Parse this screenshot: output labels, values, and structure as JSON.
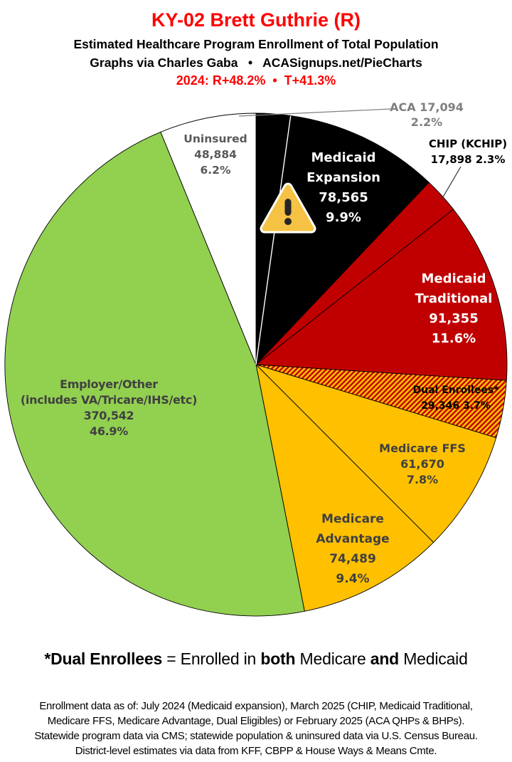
{
  "header": {
    "title": "KY-02 Brett Guthrie (R)",
    "subtitle1": "Estimated Healthcare Program Enrollment of Total Population",
    "subtitle2": "Graphs via Charles Gaba   •   ACASignups.net/PieCharts",
    "partisan_line": "2024: R+48.2%  •  T+41.3%"
  },
  "chart_data": {
    "type": "pie",
    "title": "Estimated Healthcare Program Enrollment of Total Population",
    "legend_position": "labels-on-and-around-slices",
    "start_angle_deg": 0,
    "direction": "clockwise",
    "slices": [
      {
        "label": "ACA",
        "value": 17094,
        "pct": 2.2,
        "color": "#000000"
      },
      {
        "label": "Medicaid Expansion",
        "value": 78565,
        "pct": 9.9,
        "color": "#000000"
      },
      {
        "label": "CHIP (KCHIP)",
        "value": 17898,
        "pct": 2.3,
        "color": "#C00000"
      },
      {
        "label": "Medicaid Traditional",
        "value": 91355,
        "pct": 11.6,
        "color": "#C00000"
      },
      {
        "label": "Dual Enrollees*",
        "value": 29346,
        "pct": 3.7,
        "color": "hatch",
        "pattern": "red-gold-diagonal-stripes"
      },
      {
        "label": "Medicare FFS",
        "value": 61670,
        "pct": 7.8,
        "color": "#FFC000"
      },
      {
        "label": "Medicare Advantage",
        "value": 74489,
        "pct": 9.4,
        "color": "#FFC000"
      },
      {
        "label": "Employer/Other (includes VA/Tricare/IHS/etc)",
        "value": 370542,
        "pct": 46.9,
        "color": "#92D050"
      },
      {
        "label": "Uninsured",
        "value": 48884,
        "pct": 6.2,
        "color": "#FFFFFF"
      }
    ]
  },
  "labels": {
    "aca": {
      "lines": [
        "ACA 17,094",
        "2.2%"
      ]
    },
    "chip": {
      "lines": [
        "CHIP (KCHIP)",
        "17,898 2.3%"
      ]
    },
    "uninsured": {
      "lines": [
        "Uninsured",
        "48,884",
        "6.2%"
      ]
    },
    "medicaid_expansion": {
      "lines": [
        "Medicaid",
        "Expansion",
        "78,565",
        "9.9%"
      ]
    },
    "medicaid_traditional": {
      "lines": [
        "Medicaid",
        "Traditional",
        "91,355",
        "11.6%"
      ]
    },
    "dual_enrollees": {
      "lines": [
        "Dual Enrollees*",
        "29,346 3.7%"
      ]
    },
    "medicare_ffs": {
      "lines": [
        "Medicare FFS",
        "61,670",
        "7.8%"
      ]
    },
    "medicare_advantage": {
      "lines": [
        "Medicare",
        "Advantage",
        "74,489",
        "9.4%"
      ]
    },
    "employer": {
      "lines": [
        "Employer/Other",
        "(includes VA/Tricare/IHS/etc)",
        "370,542",
        "46.9%"
      ]
    }
  },
  "note": {
    "segments": [
      {
        "text": "*Dual Enrollees",
        "bold": true
      },
      {
        "text": " = Enrolled in ",
        "bold": false
      },
      {
        "text": "both",
        "bold": true
      },
      {
        "text": " Medicare ",
        "bold": false
      },
      {
        "text": "and",
        "bold": true
      },
      {
        "text": " Medicaid",
        "bold": false
      }
    ]
  },
  "footer": {
    "lines": [
      "Enrollment data as of: July 2024 (Medicaid expansion), March 2025 (CHIP, Medicaid Traditional,",
      "Medicare FFS, Medicare Advantage, Dual Eligibles) or February 2025 (ACA QHPs & BHPs).",
      "Statewide program data via CMS; statewide population & uninsured data via U.S. Census Bureau.",
      "District-level estimates via data from KFF, CBPP & House Ways & Means Cmte."
    ]
  },
  "icons": {
    "warning": "warning-triangle-icon"
  },
  "colors": {
    "title_red": "#FF0000",
    "slice_black": "#000000",
    "slice_dark_red": "#C00000",
    "slice_gold": "#FFC000",
    "slice_green": "#92D050",
    "slice_white": "#FFFFFF",
    "outer_label_gray": "#7F7F7F",
    "on_gold_label_gray": "#404040",
    "warning_fill": "#F6C244"
  }
}
